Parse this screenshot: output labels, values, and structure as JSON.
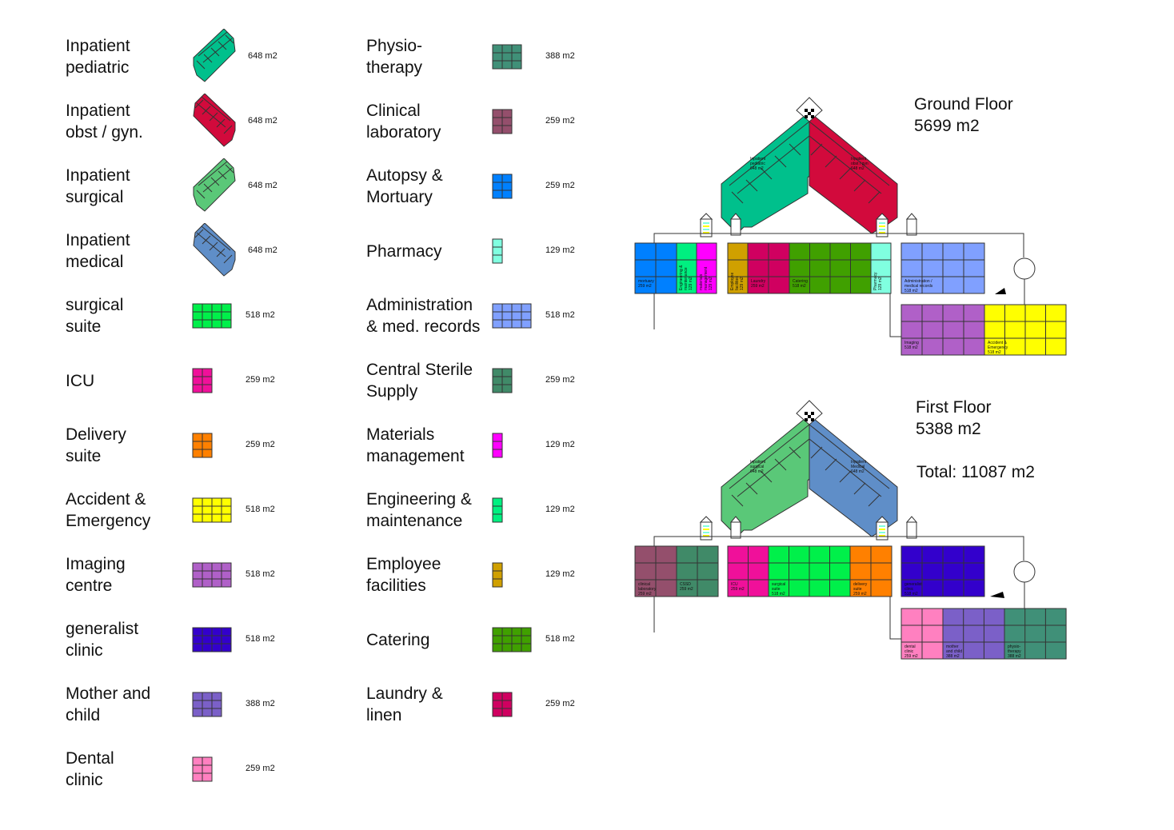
{
  "legend_left": [
    {
      "label": "Inpatient\npediatric",
      "area": "648 m2",
      "color": "#00c08c",
      "shape": "diamond"
    },
    {
      "label": "Inpatient\nobst / gyn.",
      "area": "648 m2",
      "color": "#d20a3c",
      "shape": "diamond"
    },
    {
      "label": "Inpatient\nsurgical",
      "area": "648 m2",
      "color": "#5ac878",
      "shape": "diamond"
    },
    {
      "label": "Inpatient\nmedical",
      "area": "648 m2",
      "color": "#5f8ec8",
      "shape": "diamond"
    },
    {
      "label": "surgical\nsuite",
      "area": "518 m2",
      "color": "#00f04a",
      "shape": "grid4x3"
    },
    {
      "label": "ICU",
      "area": "259 m2",
      "color": "#f0109a",
      "shape": "grid2x3"
    },
    {
      "label": "Delivery\nsuite",
      "area": "259 m2",
      "color": "#ff8000",
      "shape": "grid2x3"
    },
    {
      "label": "Accident &\nEmergency",
      "area": "518 m2",
      "color": "#ffff00",
      "shape": "grid4x3"
    },
    {
      "label": "Imaging\ncentre",
      "area": "518 m2",
      "color": "#b060c8",
      "shape": "grid4x3"
    },
    {
      "label": "generalist\nclinic",
      "area": "518 m2",
      "color": "#3300cc",
      "shape": "grid4x3"
    },
    {
      "label": "Mother and\nchild",
      "area": "388 m2",
      "color": "#7b60c8",
      "shape": "grid3x3"
    },
    {
      "label": "Dental\nclinic",
      "area": "259 m2",
      "color": "#ff80c0",
      "shape": "grid2x3"
    }
  ],
  "legend_right": [
    {
      "label": "Physio-\ntherapy",
      "area": "388 m2",
      "color": "#409078",
      "shape": "grid3x3"
    },
    {
      "label": "Clinical\nlaboratory",
      "area": "259 m2",
      "color": "#944f6c",
      "shape": "grid2x3"
    },
    {
      "label": "Autopsy &\nMortuary",
      "area": "259 m2",
      "color": "#0080ff",
      "shape": "grid2x3"
    },
    {
      "label": "Pharmacy",
      "area": "129 m2",
      "color": "#80ffe0",
      "shape": "grid1x3"
    },
    {
      "label": "Administration\n& med. records",
      "area": "518 m2",
      "color": "#80a0ff",
      "shape": "grid4x3"
    },
    {
      "label": "Central Sterile\nSupply",
      "area": "259 m2",
      "color": "#408a68",
      "shape": "grid2x3"
    },
    {
      "label": "Materials\nmanagement",
      "area": "129 m2",
      "color": "#ff00ff",
      "shape": "grid1x3"
    },
    {
      "label": "Engineering &\nmaintenance",
      "area": "129 m2",
      "color": "#00f080",
      "shape": "grid1x3"
    },
    {
      "label": "Employee\nfacilities",
      "area": "129 m2",
      "color": "#d0a000",
      "shape": "grid1x3"
    },
    {
      "label": "Catering",
      "area": "518 m2",
      "color": "#40a000",
      "shape": "grid4x3"
    },
    {
      "label": "Laundry &\nlinen",
      "area": "259 m2",
      "color": "#d00060",
      "shape": "grid2x3"
    }
  ],
  "ground_floor": {
    "title": "Ground Floor\n5699 m2",
    "wing_left_label": "Inpatient\npediatric\n648 m2",
    "wing_right_label": "Inpatient\nobst / gyn\n648 m2",
    "blocks": [
      {
        "label": "mortuary\n259 m2",
        "color": "#0080ff",
        "cols": 2
      },
      {
        "label": "Engineering &\nmaintenance\n129 m2",
        "color": "#00f080",
        "cols": 1,
        "vertical": true
      },
      {
        "label": "materials\nmanagement\n129 m2",
        "color": "#ff00ff",
        "cols": 1,
        "vertical": true
      },
      {
        "label": "Employee\nfacilities\n129 m2",
        "color": "#d0a000",
        "cols": 1,
        "vertical": true
      },
      {
        "label": "Laundry\n259 m2",
        "color": "#d00060",
        "cols": 2
      },
      {
        "label": "Catering\n518 m2",
        "color": "#40a000",
        "cols": 4
      },
      {
        "label": "Pharmacy\n129 m2",
        "color": "#80ffe0",
        "cols": 1,
        "vertical": true
      },
      {
        "label": "Administration /\nmedical records\n518 m2",
        "color": "#80a0ff",
        "cols": 4
      },
      {
        "label": "Imaging\n518 m2",
        "color": "#b060c8",
        "cols": 4
      },
      {
        "label": "Accident &\nEmergency\n518 m2",
        "color": "#ffff00",
        "cols": 4
      }
    ]
  },
  "first_floor": {
    "title": "First Floor\n5388 m2",
    "total": "Total: 11087 m2",
    "wing_left_label": "Inpatient\nsurgical\n648 m2",
    "wing_right_label": "Inpatient\nMedical\n648 m2",
    "blocks": [
      {
        "label": "clinical\nlaboratory\n259 m2",
        "color": "#944f6c",
        "cols": 2
      },
      {
        "label": "CSSD\n259 m2",
        "color": "#408a68",
        "cols": 2
      },
      {
        "label": "ICU\n259 m2",
        "color": "#f0109a",
        "cols": 2
      },
      {
        "label": "surgical\nsuite\n518 m2",
        "color": "#00f04a",
        "cols": 4
      },
      {
        "label": "delivery\nsuite\n259 m2",
        "color": "#ff8000",
        "cols": 2
      },
      {
        "label": "generalist\nclinic\n518 m2",
        "color": "#3300cc",
        "cols": 4
      },
      {
        "label": "dental\nclinic\n259 m2",
        "color": "#ff80c0",
        "cols": 2
      },
      {
        "label": "mother\nand child\n388 m2",
        "color": "#7b60c8",
        "cols": 3
      },
      {
        "label": "physio-\ntherapy\n388 m2",
        "color": "#409078",
        "cols": 3
      }
    ]
  }
}
